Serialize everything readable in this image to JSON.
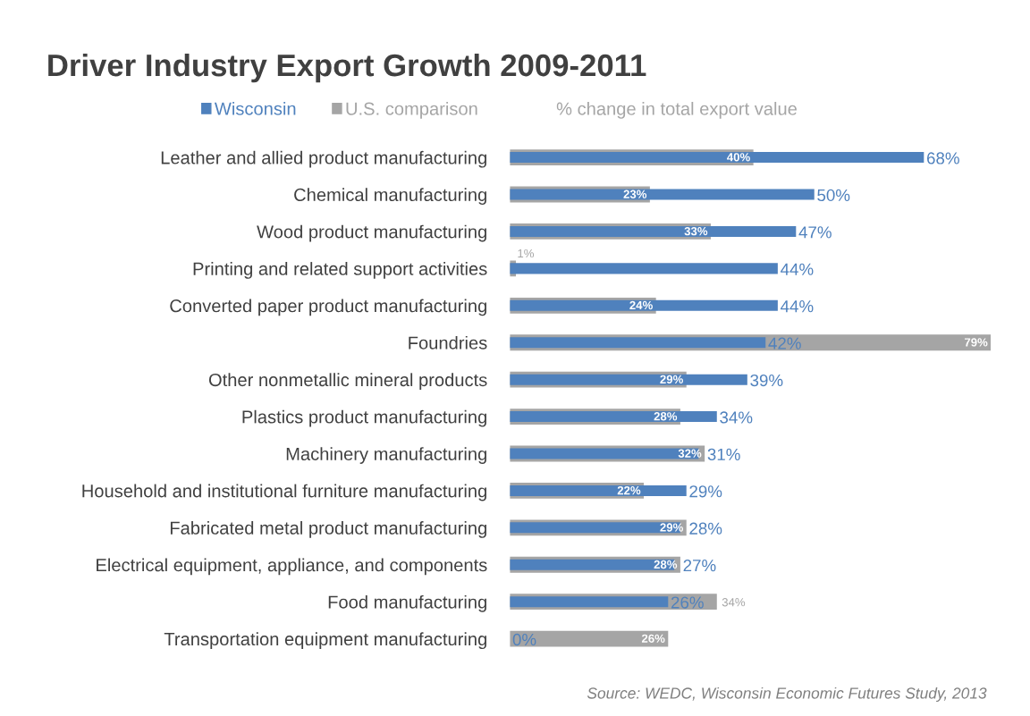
{
  "chart_data": {
    "type": "bar",
    "orientation": "horizontal",
    "title": "Driver Industry Export Growth 2009-2011",
    "xlabel": "% change in total export value",
    "categories": [
      "Leather and allied product manufacturing",
      "Chemical manufacturing",
      "Wood product manufacturing",
      "Printing and related support activities",
      "Converted paper product manufacturing",
      "Foundries",
      "Other nonmetallic mineral products",
      "Plastics product manufacturing",
      "Machinery manufacturing",
      "Household and institutional furniture manufacturing",
      "Fabricated metal product manufacturing",
      "Electrical equipment, appliance, and components",
      "Food manufacturing",
      "Transportation equipment manufacturing"
    ],
    "series": [
      {
        "name": "U.S. comparison",
        "color": "#a5a5a5",
        "values": [
          40,
          23,
          33,
          1,
          24,
          79,
          29,
          28,
          32,
          22,
          29,
          28,
          34,
          26
        ],
        "value_labels": [
          "40%",
          "23%",
          "33%",
          "1%",
          "24%",
          "79%",
          "29%",
          "28%",
          "32%",
          "22%",
          "29%",
          "28%",
          "34%",
          "26%"
        ]
      },
      {
        "name": "Wisconsin",
        "color": "#4f81bd",
        "values": [
          68,
          50,
          47,
          44,
          44,
          42,
          39,
          34,
          31,
          29,
          28,
          27,
          26,
          0
        ],
        "value_labels": [
          "68%",
          "50%",
          "47%",
          "44%",
          "44%",
          "42%",
          "39%",
          "34%",
          "31%",
          "29%",
          "28%",
          "27%",
          "26%",
          "0%"
        ]
      }
    ],
    "legend": "top",
    "grid": false,
    "annotations": [
      "Source: WEDC, Wisconsin Economic Futures Study, 2013"
    ]
  }
}
